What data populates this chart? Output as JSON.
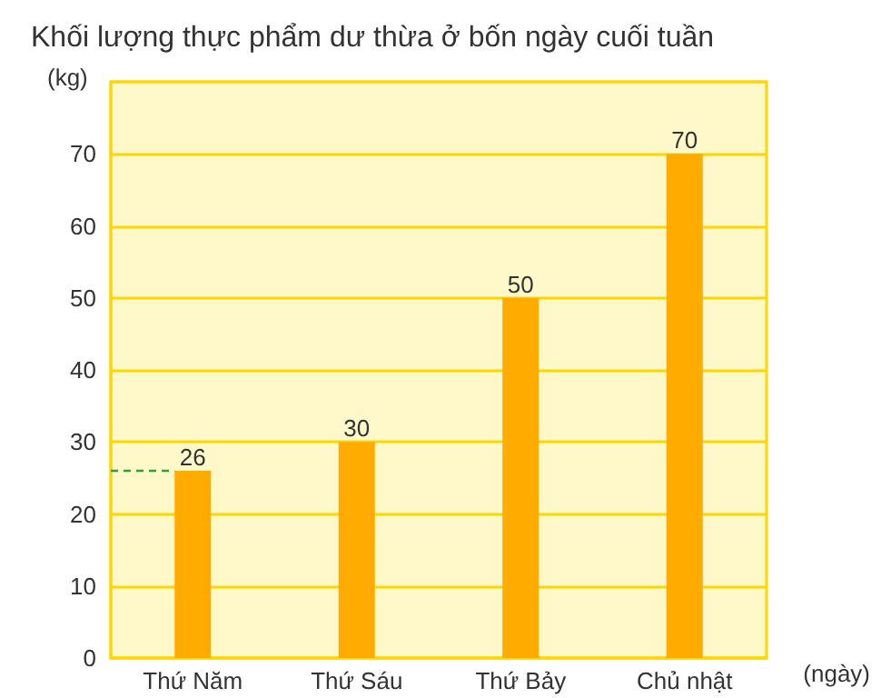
{
  "chart_data": {
    "type": "bar",
    "title": "Khối lượng thực phẩm dư thừa ở bốn ngày cuối tuần",
    "ylabel": "(kg)",
    "xlabel": "(ngày)",
    "categories": [
      "Thứ Năm",
      "Thứ Sáu",
      "Thứ Bảy",
      "Chủ nhật"
    ],
    "values": [
      26,
      30,
      50,
      70
    ],
    "color": "#ffab00",
    "data_labels": true,
    "ylim": [
      0,
      80
    ],
    "yticks": [
      0,
      10,
      20,
      30,
      40,
      50,
      60,
      70,
      {
        "value": 80,
        "label": null
      }
    ],
    "grid": "y",
    "ref_lines": [
      {
        "axis": "y",
        "value": 26,
        "color": "#2e9e3a",
        "line_style": "dashed"
      }
    ]
  }
}
